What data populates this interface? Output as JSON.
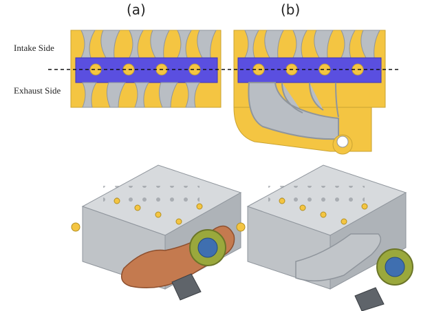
{
  "panel_labels": {
    "a": "(a)",
    "b": "(b)"
  },
  "side_labels": {
    "intake": "Intake Side",
    "exhaust": "Exhaust Side"
  },
  "colors": {
    "head_yellow": "#f4c542",
    "port_gray": "#b9bec4",
    "chamber_blue": "#5a4fe0",
    "manifold_copper": "#c47a4f",
    "block_gray": "#c9ccd0",
    "turbo_green": "#9aa83c"
  }
}
